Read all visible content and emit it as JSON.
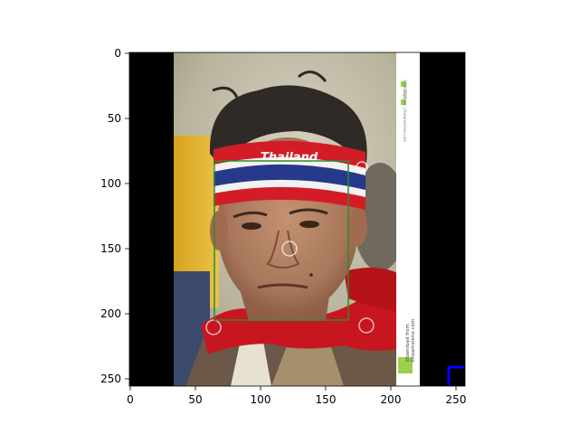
{
  "figure": {
    "x_ticks": [
      "0",
      "50",
      "100",
      "150",
      "200",
      "250"
    ],
    "y_ticks": [
      "0",
      "50",
      "100",
      "150",
      "200",
      "250"
    ]
  },
  "image": {
    "watermark_lines": [
      "Download from",
      "Dreamstime.com"
    ],
    "headband_text": "Thailand",
    "sidebar_lines": [
      "13369595",
      "Bigbirdz | Dreamstime.com"
    ]
  },
  "colors": {
    "face_box": "#2e8b2e",
    "corner_box": "#0000ff",
    "padding": "#000000"
  }
}
